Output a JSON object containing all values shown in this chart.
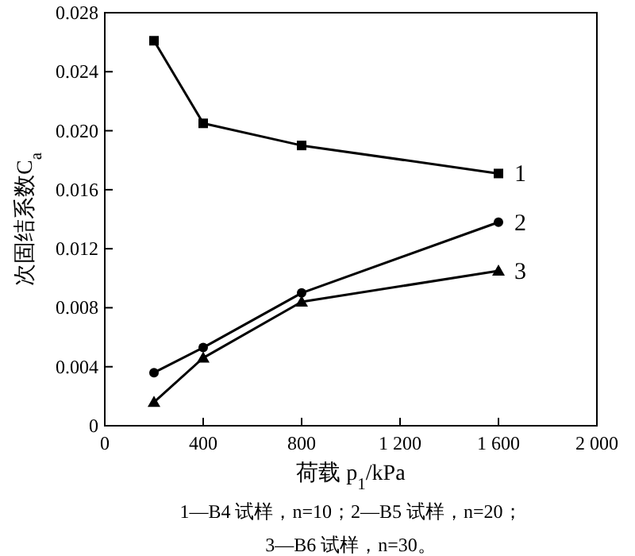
{
  "chart_data": {
    "type": "line",
    "xlabel": "荷载 p$_{1}$/kPa",
    "ylabel": "次固结系数C$_{a}$",
    "grid": false,
    "xlim": [
      0,
      2000
    ],
    "xticks": [
      0,
      400,
      800,
      {
        "value": 1200,
        "label": "1 200"
      },
      {
        "value": 1600,
        "label": "1 600"
      },
      {
        "value": 2000,
        "label": "2 000"
      }
    ],
    "ylim": [
      0,
      0.028
    ],
    "yticks": [
      0,
      0.004,
      0.008,
      0.012,
      0.016,
      {
        "value": 0.02,
        "label": "0.020"
      },
      0.024,
      0.028
    ],
    "x": [
      200,
      400,
      800,
      1600
    ],
    "series": [
      {
        "name": "1",
        "color": "#000000",
        "marker": "square",
        "values": [
          0.0261,
          0.0205,
          0.019,
          0.0171
        ]
      },
      {
        "name": "2",
        "color": "#000000",
        "marker": "circle",
        "values": [
          0.0036,
          0.0053,
          0.009,
          0.0138
        ]
      },
      {
        "name": "3",
        "color": "#000000",
        "marker": "triangle",
        "values": [
          0.0016,
          0.0046,
          0.0084,
          0.0105
        ]
      }
    ],
    "annotations": [
      "1—B4 试样，n=10；2—B5 试样，n=20；",
      "3—B6 试样，n=30。"
    ]
  }
}
